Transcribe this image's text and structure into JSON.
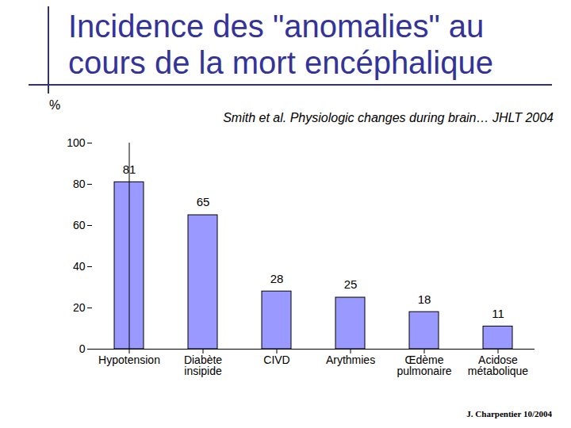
{
  "chart_data": {
    "type": "bar",
    "title": "Incidence des \"anomalies\" au cours de la mort encéphalique",
    "subtitle": "Smith et al. Physiologic changes during brain… JHLT 2004",
    "ylabel": "%",
    "annotations": [
      "J. Charpentier 10/2004"
    ],
    "categories": [
      "Hypotension",
      "Diabète insipide",
      "CIVD",
      "Arythmies",
      "Œdème pulmonaire",
      "Acidose métabolique"
    ],
    "values": [
      81,
      65,
      28,
      25,
      18,
      11
    ],
    "color": "#9999ff",
    "ylim": [
      0,
      100
    ],
    "yticks": [
      0,
      20,
      40,
      60,
      80,
      100
    ],
    "grid": false,
    "data_labels": true
  }
}
